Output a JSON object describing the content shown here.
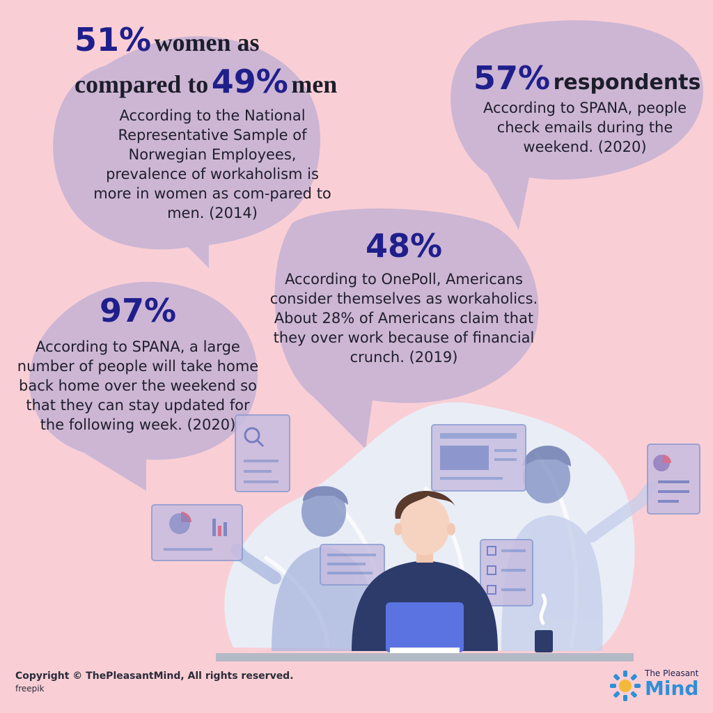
{
  "stat1": {
    "pct_women": "51%",
    "text_a": "women as",
    "text_b": "compared to",
    "pct_men": "49%",
    "text_c": "men",
    "description": "According to the National Representative Sample of Norwegian Employees, prevalence of workaholism is more in women as com-pared to men. (2014)"
  },
  "stat2": {
    "pct": "57%",
    "label": "respondents",
    "description": "According to SPANA, people check emails during the weekend. (2020)"
  },
  "stat3": {
    "pct": "48%",
    "description": "According to OnePoll, Americans consider themselves as workaholics. About 28% of Americans claim that they over work because of financial crunch. (2019)"
  },
  "stat4": {
    "pct": "97%",
    "description": "According to SPANA, a large number of people will take home back home over the weekend so that they can stay updated for the following week. (2020)"
  },
  "footer": {
    "copyright": "Copyright © ThePleasantMind, All rights reserved.",
    "credit": "freepik"
  },
  "brand": {
    "line1": "The Pleasant",
    "line2": "Mind"
  },
  "colors": {
    "background": "#f9cfd5",
    "bubble": "#c8b3d4",
    "accent": "#1f1f8c"
  }
}
